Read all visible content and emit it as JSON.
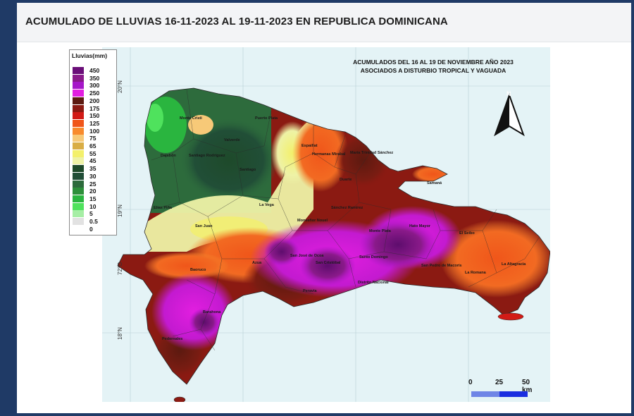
{
  "header": {
    "title": "ACUMULADO DE LLUVIAS 16-11-2023 AL 19-11-2023 EN REPUBLICA DOMINICANA"
  },
  "map": {
    "heading_line1": "ACUMULADOS DEL 16 AL 19 DE NOVIEMBRE AÑO 2023",
    "heading_line2": "ASOCIADOS A DISTURBIO TROPICAL Y VAGUADA",
    "north_label": "N",
    "lat_labels": [
      "20°N",
      "19°N",
      "18°N"
    ],
    "lon_label": "72°O",
    "scale_labels": [
      "0",
      "25",
      "50 km"
    ],
    "provinces": [
      {
        "name": "Monte Cristi",
        "color": "#2b5a2e"
      },
      {
        "name": "Puerto Plata",
        "color": "#2b5a2e"
      },
      {
        "name": "Valverde",
        "color": "#2b5a2e"
      },
      {
        "name": "Dajabón",
        "color": "#2b5a2e"
      },
      {
        "name": "Santiago Rodríguez",
        "color": "#2b5a2e"
      },
      {
        "name": "Santiago",
        "color": "#2b5a2e"
      },
      {
        "name": "Espaillat",
        "color": "#2b5a2e"
      },
      {
        "name": "Hermanas Mirabal",
        "color": "#2b5a2e"
      },
      {
        "name": "María Trinidad Sánchez",
        "color": "#2b5a2e"
      },
      {
        "name": "Duarte",
        "color": "#2b5a2e"
      },
      {
        "name": "Samaná",
        "color": "#2b5a2e"
      },
      {
        "name": "La Vega",
        "color": "#2b5a2e"
      },
      {
        "name": "Elías Piña",
        "color": "#2b5a2e"
      },
      {
        "name": "San Juan",
        "color": "#2b5a2e"
      },
      {
        "name": "Sánchez Ramírez",
        "color": "#2b5a2e"
      },
      {
        "name": "Monseñor Nouel",
        "color": "#2b5a2e"
      },
      {
        "name": "Monte Plata",
        "color": "#2b5a2e"
      },
      {
        "name": "Hato Mayor",
        "color": "#2b5a2e"
      },
      {
        "name": "El Seibo",
        "color": "#2b5a2e"
      },
      {
        "name": "San José de Ocoa",
        "color": "#2b5a2e"
      },
      {
        "name": "Azua",
        "color": "#2b5a2e"
      },
      {
        "name": "San Cristóbal",
        "color": "#2b5a2e"
      },
      {
        "name": "Santo Domingo",
        "color": "#2b5a2e"
      },
      {
        "name": "Distrito Nacional",
        "color": "#2b5a2e"
      },
      {
        "name": "San Pedro de Macorís",
        "color": "#2b5a2e"
      },
      {
        "name": "La Romana",
        "color": "#2b5a2e"
      },
      {
        "name": "La Altagracia",
        "color": "#2b5a2e"
      },
      {
        "name": "Baoruco",
        "color": "#2b5a2e"
      },
      {
        "name": "Peravia",
        "color": "#2b5a2e"
      },
      {
        "name": "Barahona",
        "color": "#2b5a2e"
      },
      {
        "name": "Pedernales",
        "color": "#2b5a2e"
      }
    ]
  },
  "legend": {
    "title": "Lluvias(mm)",
    "items": [
      {
        "label": "450",
        "color": "#6a0e78"
      },
      {
        "label": "350",
        "color": "#8a1a8a"
      },
      {
        "label": "300",
        "color": "#a617c9"
      },
      {
        "label": "250",
        "color": "#e21ee0"
      },
      {
        "label": "200",
        "color": "#5c1a10"
      },
      {
        "label": "175",
        "color": "#8b1a12"
      },
      {
        "label": "150",
        "color": "#d21b16"
      },
      {
        "label": "125",
        "color": "#f0561a"
      },
      {
        "label": "100",
        "color": "#f88b2e"
      },
      {
        "label": "75",
        "color": "#f7c978"
      },
      {
        "label": "65",
        "color": "#d9ad45"
      },
      {
        "label": "55",
        "color": "#f3f06b"
      },
      {
        "label": "45",
        "color": "#eef2a6"
      },
      {
        "label": "35",
        "color": "#1e4a2a"
      },
      {
        "label": "30",
        "color": "#214e37"
      },
      {
        "label": "25",
        "color": "#2d6b3c"
      },
      {
        "label": "20",
        "color": "#2d8f3a"
      },
      {
        "label": "15",
        "color": "#2ab53f"
      },
      {
        "label": "10",
        "color": "#4fe25d"
      },
      {
        "label": "5",
        "color": "#a6eea5"
      },
      {
        "label": "0.5",
        "color": "#e2e2e2"
      },
      {
        "label": "0",
        "color": "#ffffff"
      }
    ]
  }
}
